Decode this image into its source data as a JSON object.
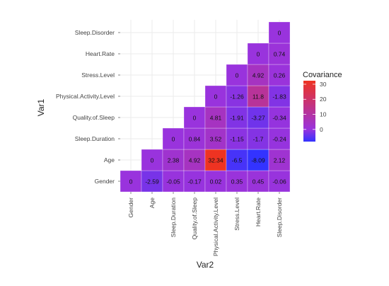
{
  "chart_data": {
    "type": "heatmap",
    "xlabel": "Var2",
    "ylabel": "Var1",
    "variables": [
      "Gender",
      "Age",
      "Sleep.Duration",
      "Quality.of.Sleep",
      "Physical.Activity.Level",
      "Stress.Level",
      "Heart.Rate",
      "Sleep.Disorder"
    ],
    "y_order_top_to_bottom": [
      "Sleep.Disorder",
      "Heart.Rate",
      "Stress.Level",
      "Physical.Activity.Level",
      "Quality.of.Sleep",
      "Sleep.Duration",
      "Age",
      "Gender"
    ],
    "cells": [
      {
        "var1": "Gender",
        "var2": "Gender",
        "value": 0,
        "label": "0"
      },
      {
        "var1": "Gender",
        "var2": "Age",
        "value": -2.59,
        "label": "-2.59"
      },
      {
        "var1": "Gender",
        "var2": "Sleep.Duration",
        "value": -0.05,
        "label": "-0.05"
      },
      {
        "var1": "Gender",
        "var2": "Quality.of.Sleep",
        "value": -0.17,
        "label": "-0.17"
      },
      {
        "var1": "Gender",
        "var2": "Physical.Activity.Level",
        "value": 0.02,
        "label": "0.02"
      },
      {
        "var1": "Gender",
        "var2": "Stress.Level",
        "value": 0.35,
        "label": "0.35"
      },
      {
        "var1": "Gender",
        "var2": "Heart.Rate",
        "value": 0.45,
        "label": "0.45"
      },
      {
        "var1": "Gender",
        "var2": "Sleep.Disorder",
        "value": -0.06,
        "label": "-0.06"
      },
      {
        "var1": "Age",
        "var2": "Age",
        "value": 0,
        "label": "0"
      },
      {
        "var1": "Age",
        "var2": "Sleep.Duration",
        "value": 2.38,
        "label": "2.38"
      },
      {
        "var1": "Age",
        "var2": "Quality.of.Sleep",
        "value": 4.92,
        "label": "4.92"
      },
      {
        "var1": "Age",
        "var2": "Physical.Activity.Level",
        "value": 32.34,
        "label": "32.34"
      },
      {
        "var1": "Age",
        "var2": "Stress.Level",
        "value": -6.5,
        "label": "-6.5"
      },
      {
        "var1": "Age",
        "var2": "Heart.Rate",
        "value": -8.09,
        "label": "-8.09"
      },
      {
        "var1": "Age",
        "var2": "Sleep.Disorder",
        "value": 2.12,
        "label": "2.12"
      },
      {
        "var1": "Sleep.Duration",
        "var2": "Sleep.Duration",
        "value": 0,
        "label": "0"
      },
      {
        "var1": "Sleep.Duration",
        "var2": "Quality.of.Sleep",
        "value": 0.84,
        "label": "0.84"
      },
      {
        "var1": "Sleep.Duration",
        "var2": "Physical.Activity.Level",
        "value": 3.52,
        "label": "3.52"
      },
      {
        "var1": "Sleep.Duration",
        "var2": "Stress.Level",
        "value": -1.15,
        "label": "-1.15"
      },
      {
        "var1": "Sleep.Duration",
        "var2": "Heart.Rate",
        "value": -1.7,
        "label": "-1.7"
      },
      {
        "var1": "Sleep.Duration",
        "var2": "Sleep.Disorder",
        "value": -0.24,
        "label": "-0.24"
      },
      {
        "var1": "Quality.of.Sleep",
        "var2": "Quality.of.Sleep",
        "value": 0,
        "label": "0"
      },
      {
        "var1": "Quality.of.Sleep",
        "var2": "Physical.Activity.Level",
        "value": 4.81,
        "label": "4.81"
      },
      {
        "var1": "Quality.of.Sleep",
        "var2": "Stress.Level",
        "value": -1.91,
        "label": "-1.91"
      },
      {
        "var1": "Quality.of.Sleep",
        "var2": "Heart.Rate",
        "value": -3.27,
        "label": "-3.27"
      },
      {
        "var1": "Quality.of.Sleep",
        "var2": "Sleep.Disorder",
        "value": -0.34,
        "label": "-0.34"
      },
      {
        "var1": "Physical.Activity.Level",
        "var2": "Physical.Activity.Level",
        "value": 0,
        "label": "0"
      },
      {
        "var1": "Physical.Activity.Level",
        "var2": "Stress.Level",
        "value": -1.26,
        "label": "-1.26"
      },
      {
        "var1": "Physical.Activity.Level",
        "var2": "Heart.Rate",
        "value": 11.8,
        "label": "11.8"
      },
      {
        "var1": "Physical.Activity.Level",
        "var2": "Sleep.Disorder",
        "value": -1.83,
        "label": "-1.83"
      },
      {
        "var1": "Stress.Level",
        "var2": "Stress.Level",
        "value": 0,
        "label": "0"
      },
      {
        "var1": "Stress.Level",
        "var2": "Heart.Rate",
        "value": 4.92,
        "label": "4.92"
      },
      {
        "var1": "Stress.Level",
        "var2": "Sleep.Disorder",
        "value": 0.26,
        "label": "0.26"
      },
      {
        "var1": "Heart.Rate",
        "var2": "Heart.Rate",
        "value": 0,
        "label": "0"
      },
      {
        "var1": "Heart.Rate",
        "var2": "Sleep.Disorder",
        "value": 0.74,
        "label": "0.74"
      },
      {
        "var1": "Sleep.Disorder",
        "var2": "Sleep.Disorder",
        "value": 0,
        "label": "0"
      }
    ],
    "legend": {
      "title": "Covariance",
      "placement": "right",
      "ticks": [
        30,
        20,
        10,
        0
      ],
      "range": [
        -8.09,
        32.34
      ],
      "colors": {
        "low": "#3333ff",
        "mid": "#9933dd",
        "high": "#ee3322"
      }
    },
    "grid": true
  }
}
